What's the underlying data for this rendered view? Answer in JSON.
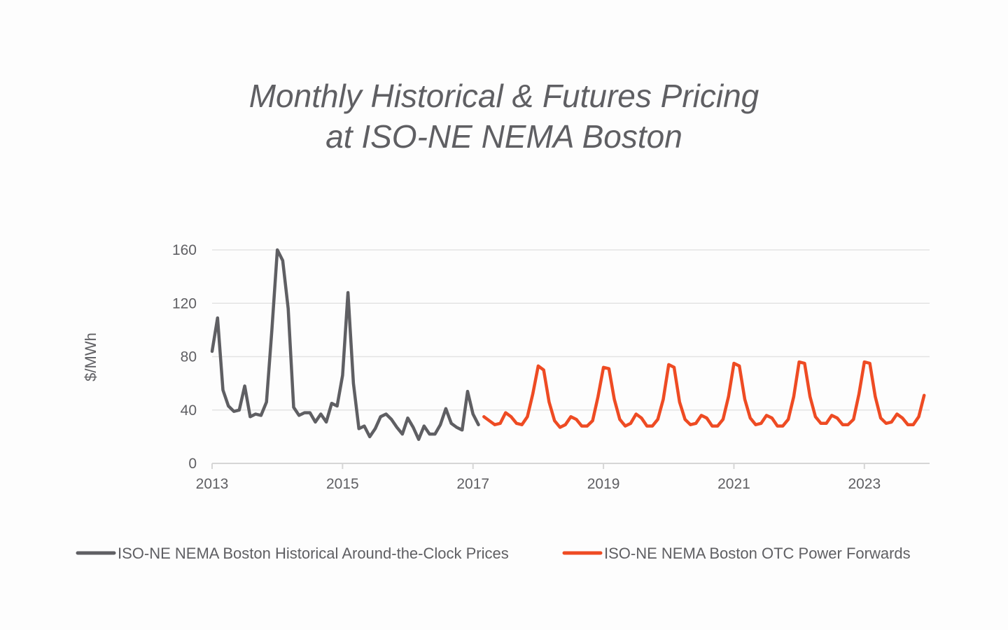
{
  "chart_data": {
    "type": "line",
    "title_lines": [
      "Monthly Historical & Futures Pricing",
      "at ISO-NE NEMA Boston"
    ],
    "ylabel": "$/MWh",
    "xlabel": "",
    "ylim": [
      0,
      160
    ],
    "yticks": [
      0,
      40,
      80,
      120,
      160
    ],
    "xlim": [
      2013.0,
      2024.0
    ],
    "xticks": [
      2013,
      2015,
      2017,
      2019,
      2021,
      2023
    ],
    "grid": "horizontal",
    "legend_position": "bottom",
    "series": [
      {
        "name": "ISO-NE NEMA Boston Historical Around-the-Clock Prices",
        "color": "#5f5f63",
        "start": 2013.0,
        "step": 0.0833333,
        "values": [
          84,
          109,
          55,
          43,
          39,
          40,
          58,
          35,
          37,
          36,
          46,
          100,
          160,
          152,
          116,
          42,
          36,
          38,
          38,
          31,
          37,
          31,
          45,
          43,
          66,
          128,
          60,
          26,
          28,
          20,
          26,
          35,
          37,
          33,
          27,
          22,
          34,
          27,
          18,
          28,
          22,
          22,
          29,
          41,
          30,
          27,
          25,
          54,
          37,
          29
        ]
      },
      {
        "name": "ISO-NE NEMA Boston OTC Power Forwards",
        "color": "#ee4b23",
        "start": 2017.1667,
        "step": 0.0833333,
        "values": [
          35,
          32,
          29,
          30,
          38,
          35,
          30,
          29,
          35,
          52,
          73,
          70,
          46,
          32,
          27,
          29,
          35,
          33,
          28,
          28,
          32,
          50,
          72,
          71,
          48,
          33,
          28,
          30,
          37,
          34,
          28,
          28,
          33,
          48,
          74,
          72,
          46,
          33,
          29,
          30,
          36,
          34,
          28,
          28,
          33,
          50,
          75,
          73,
          48,
          34,
          29,
          30,
          36,
          34,
          28,
          28,
          33,
          50,
          76,
          75,
          50,
          35,
          30,
          30,
          36,
          34,
          29,
          29,
          33,
          52,
          76,
          75,
          50,
          34,
          30,
          31,
          37,
          34,
          29,
          29,
          35,
          51
        ]
      }
    ]
  }
}
